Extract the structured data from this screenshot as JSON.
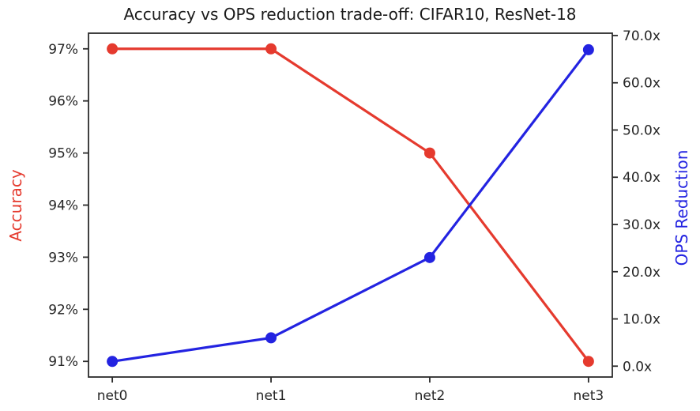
{
  "figure": {
    "background": "#ffffff",
    "text_color": "#1a1a1a",
    "tick_color": "#2b2b2b"
  },
  "chart_data": {
    "type": "line",
    "title": "Accuracy vs OPS reduction trade-off: CIFAR10, ResNet-18",
    "categories": [
      "net0",
      "net1",
      "net2",
      "net3"
    ],
    "series": [
      {
        "name": "Accuracy",
        "axis": "left",
        "color": "#e53a2e",
        "marker": "circle",
        "values": [
          97,
          97,
          95,
          91
        ]
      },
      {
        "name": "OPS Reduction",
        "axis": "right",
        "color": "#2323e1",
        "marker": "circle",
        "values": [
          1,
          6,
          23,
          67
        ]
      }
    ],
    "left_axis": {
      "label": "Accuracy",
      "label_color": "#e53a2e",
      "ticks": [
        91,
        92,
        93,
        94,
        95,
        96,
        97
      ],
      "tick_labels": [
        "91%",
        "92%",
        "93%",
        "94%",
        "95%",
        "96%",
        "97%"
      ],
      "ylim": [
        90.7,
        97.3
      ]
    },
    "right_axis": {
      "label": "OPS Reduction",
      "label_color": "#2323e1",
      "ticks": [
        0,
        10,
        20,
        30,
        40,
        50,
        60,
        70
      ],
      "tick_labels": [
        "0.0x",
        "10.0x",
        "20.0x",
        "30.0x",
        "40.0x",
        "50.0x",
        "60.0x",
        "70.0x"
      ],
      "ylim": [
        -2.3,
        70.5
      ]
    },
    "x_axis": {
      "tick_labels": [
        "net0",
        "net1",
        "net2",
        "net3"
      ],
      "xlim": [
        -0.15,
        3.15
      ]
    },
    "grid": false,
    "legend": "none"
  }
}
